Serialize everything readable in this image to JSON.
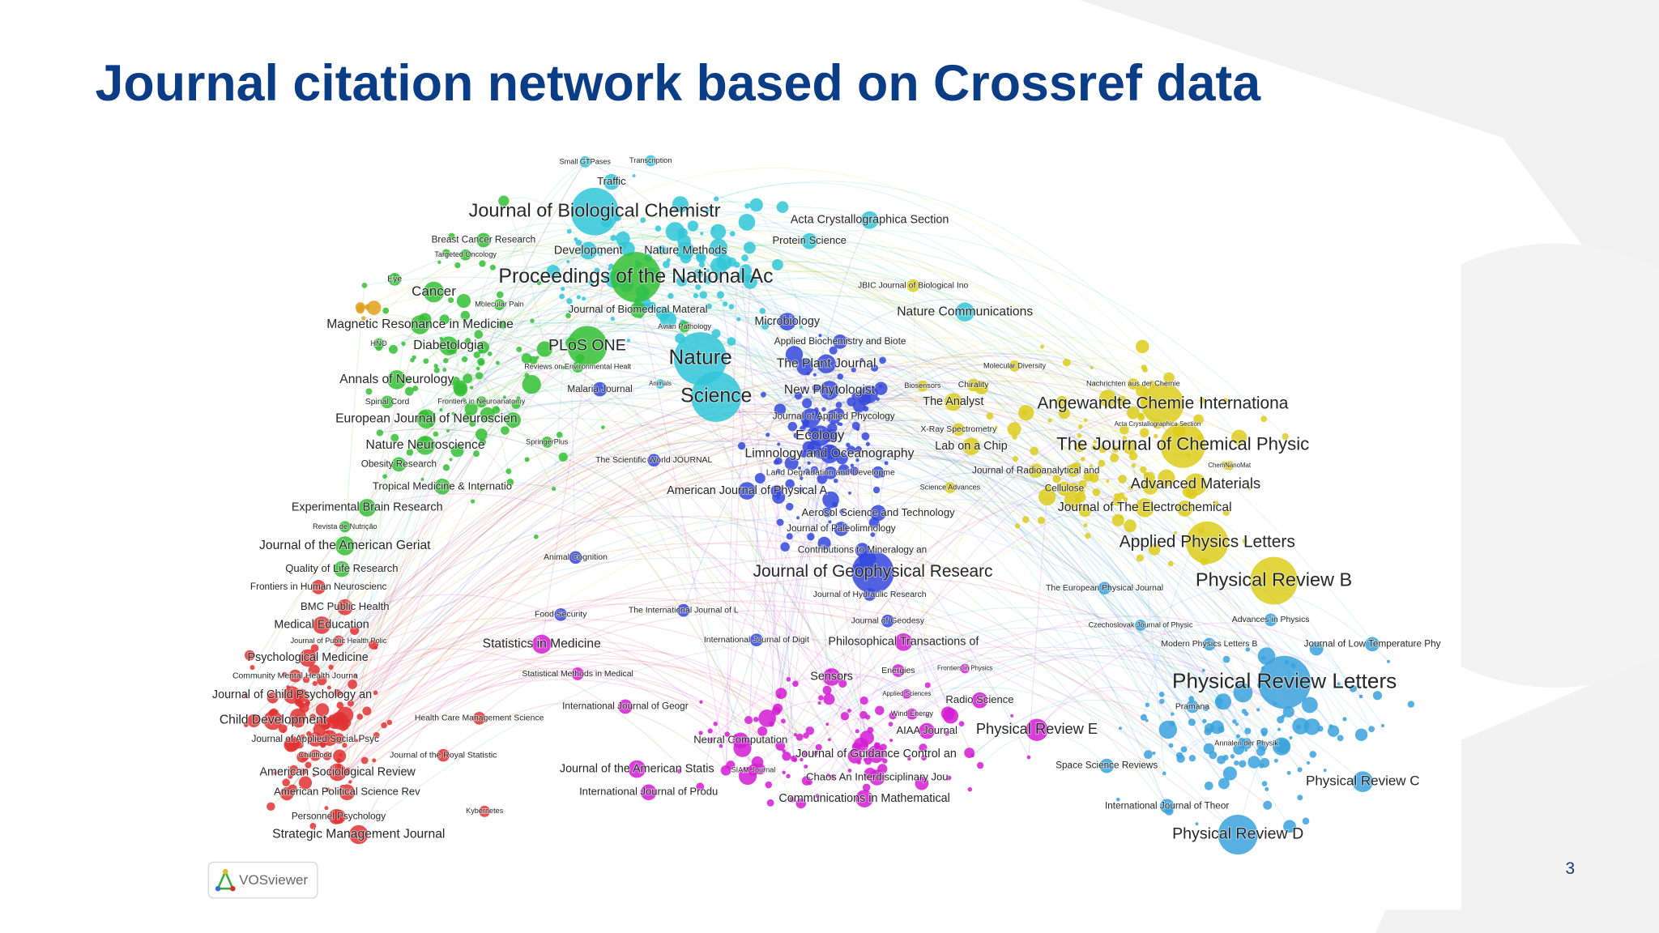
{
  "header": {
    "title": "Journal citation network based on Crossref data"
  },
  "network": {
    "labels": [
      "Small GTPases",
      "Transcription",
      "Traffic",
      "Journal of Biological Chemistr",
      "Acta Crystallographica Section",
      "Breast Cancer Research",
      "Targeted Oncology",
      "Development",
      "Nature Methods",
      "Protein Science",
      "Proceedings of the National Ac",
      "JBIC Journal of Biological Ino",
      "Eye",
      "Cancer",
      "Molecular Pain",
      "Journal of Biomedical Materal",
      "Nature Communications",
      "Magnetic Resonance in Medicine",
      "Avian Pathology",
      "Microbiology",
      "HNO",
      "Diabetologia",
      "PLoS ONE",
      "Nature",
      "Applied Biochemistry and Biote",
      "Reviews on Environmental Healt",
      "The Plant Journal",
      "Molecular Diversity",
      "Annals of Neurology",
      "Animals",
      "Malaria Journal",
      "Science",
      "New Phytologist",
      "Biosensors",
      "Chirality",
      "Nachrichten aus der Chemie",
      "Spinal Cord",
      "Frontiers in Neuroanatomy",
      "The Analyst",
      "Angewandte Chemie Internationa",
      "European Journal of Neuroscien",
      "Journal of Applied Phycology",
      "Acta Crystallographica Section",
      "X-Ray Spectrometry",
      "SpringerPlus",
      "Ecology",
      "Nature Neuroscience",
      "Lab on a Chip",
      "The Journal of Chemical Physic",
      "Obesity Research",
      "The Scientific World JOURNAL",
      "Limnology and Oceanography",
      "Journal of Radioanalytical and",
      "ChemNanoMat",
      "Land Degradation and Developme",
      "Tropical Medicine & Internatio",
      "American Journal of Physical A",
      "Science Advances",
      "Cellulose",
      "Advanced Materials",
      "Experimental Brain Research",
      "Journal of The Electrochemical",
      "Aerosol Science and Technology",
      "Revista de Nutrição",
      "Journal of Paleolimnology",
      "Journal of the American Geriat",
      "Applied Physics Letters",
      "Contributions to Mineralogy an",
      "Animal Cognition",
      "Journal of Geophysical Researc",
      "Quality of Life Research",
      "Physical Review B",
      "Frontiers in Human Neuroscienc",
      "The European Physical Journal",
      "Journal of Hydraulic Research",
      "BMC Public Health",
      "Food Security",
      "The International Journal of L",
      "Journal of Geodesy",
      "Czechoslovak Journal of Physic",
      "Advances in Physics",
      "Medical Education",
      "Journal of Public Health Polic",
      "Statistics in Medicine",
      "International Journal of Digit",
      "Philosophical Transactions of",
      "Modern Physics Letters B",
      "Journal of Low Temperature Phy",
      "Psychological Medicine",
      "Community Mental Health Journa",
      "Statistical Methods in Medical",
      "Energies",
      "Frontiers in Physics",
      "Sensors",
      "Physical Review Letters",
      "Journal of Child Psychology an",
      "Applied Sciences",
      "Radio Science",
      "Pramana",
      "International Journal of Geogr",
      "Wind Energy",
      "Child Development",
      "Health Care Management Science",
      "AIAA Journal",
      "Physical Review E",
      "Journal of Applied Social Psyc",
      "Neural Computation",
      "Annalen der Physik",
      "Childhood",
      "Journal of the Royal Statistic",
      "Journal of Guidance Control an",
      "Space Science Reviews",
      "American Sociological Review",
      "Journal of the American Statis",
      "SIAM Journal",
      "Chaos An Interdisciplinary Jou",
      "Physical Review C",
      "American Political Science Rev",
      "International Journal of Produ",
      "Communications in Mathematical",
      "International Journal of Theor",
      "Kybernetes",
      "Personnel Psychology",
      "Strategic Management Journal",
      "Physical Review D"
    ]
  },
  "footer": {
    "logo_text": "VOSviewer",
    "page_number": "3"
  }
}
